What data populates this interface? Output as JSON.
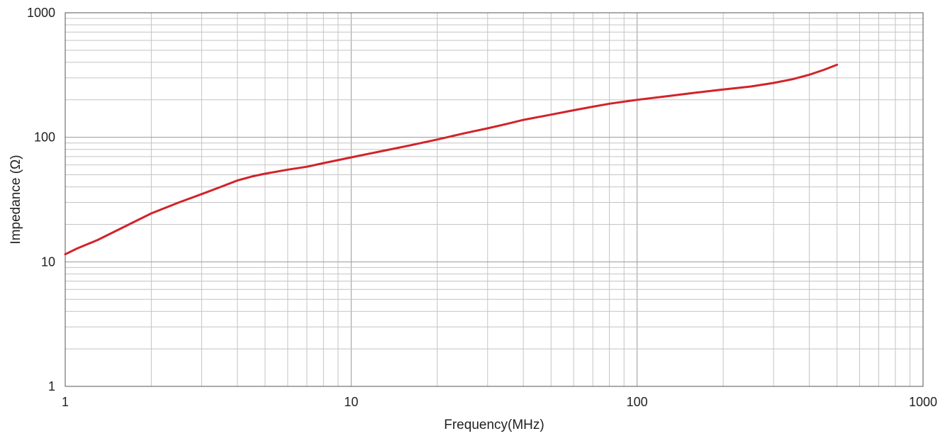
{
  "chart_data": {
    "type": "line",
    "title": "",
    "xlabel": "Frequency(MHz)",
    "ylabel": "Impedance (Ω)",
    "x_scale": "log",
    "y_scale": "log",
    "xlim": [
      1,
      1000
    ],
    "ylim": [
      1,
      1000
    ],
    "x_ticks": [
      {
        "value": 1,
        "label": "1"
      },
      {
        "value": 10,
        "label": "10"
      },
      {
        "value": 100,
        "label": "100"
      },
      {
        "value": 1000,
        "label": "1000"
      }
    ],
    "y_ticks": [
      {
        "value": 1,
        "label": "1"
      },
      {
        "value": 10,
        "label": "10"
      },
      {
        "value": 100,
        "label": "100"
      },
      {
        "value": 1000,
        "label": "1000"
      }
    ],
    "grid": true,
    "legend": "none",
    "series": [
      {
        "color": "#d2232a",
        "x": [
          1,
          1.1,
          1.3,
          1.6,
          2,
          2.5,
          3,
          3.5,
          4,
          4.5,
          5,
          6,
          7,
          8,
          10,
          13,
          16,
          20,
          25,
          30,
          35,
          40,
          50,
          60,
          70,
          80,
          100,
          130,
          160,
          200,
          250,
          300,
          350,
          400,
          450,
          500
        ],
        "y": [
          11.5,
          12.8,
          15,
          19,
          24.5,
          30,
          35,
          40,
          45,
          48.5,
          51,
          55,
          58,
          62,
          69,
          78,
          86,
          96,
          108,
          118,
          128,
          138,
          152,
          165,
          176,
          186,
          200,
          215,
          228,
          242,
          256,
          273,
          293,
          318,
          348,
          382
        ]
      }
    ]
  }
}
